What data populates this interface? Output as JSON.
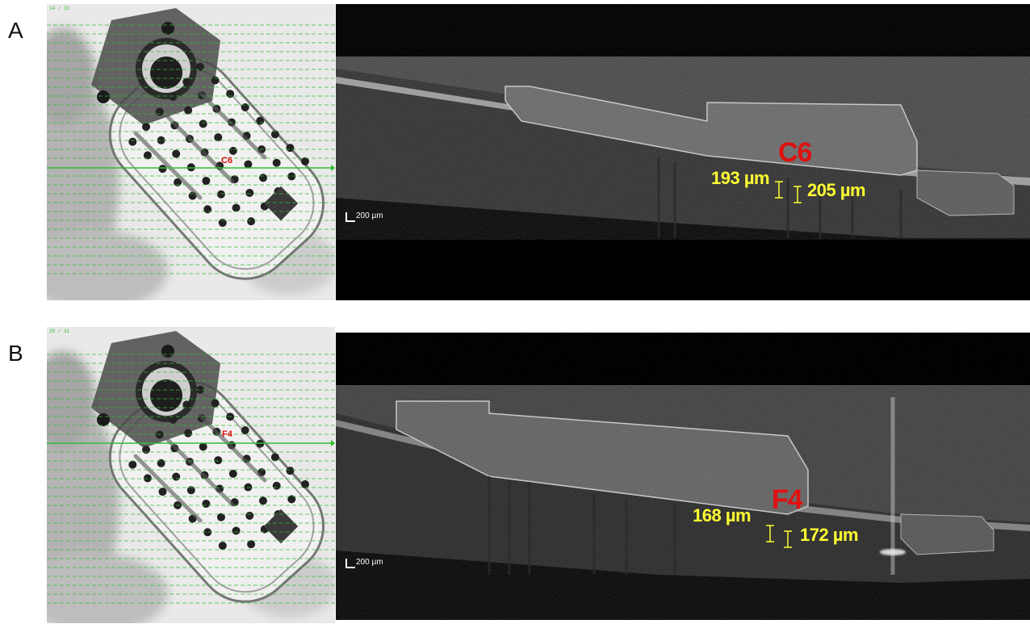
{
  "figure": {
    "panels": [
      {
        "letter": "A",
        "fundus": {
          "counter": "14 / 31",
          "marker": "C6"
        },
        "oct": {
          "label": "C6",
          "scale": "200 µm",
          "measurements": [
            "193 µm",
            "205 µm"
          ]
        }
      },
      {
        "letter": "B",
        "fundus": {
          "counter": "29 / 31",
          "marker": "F4"
        },
        "oct": {
          "label": "F4",
          "scale": "200 µm",
          "measurements": [
            "168 µm",
            "172 µm"
          ]
        }
      }
    ],
    "colors": {
      "label_red": "#e01010",
      "measurement_yellow": "#ffff33",
      "scan_line_green": "#2fbf2f"
    }
  }
}
